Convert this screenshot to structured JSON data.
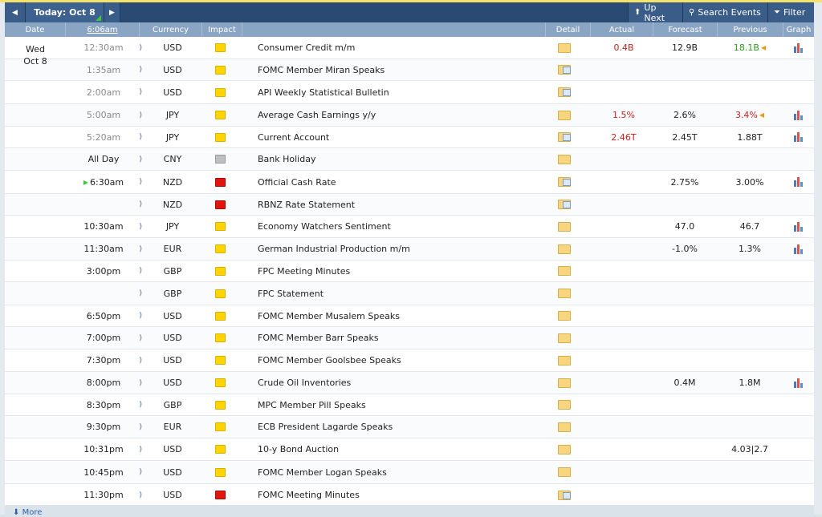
{
  "toolbar": {
    "today_label": "Today: Oct 8",
    "up_next_label": "Up Next",
    "search_label": "Search Events",
    "filter_label": "Filter"
  },
  "columns": {
    "date": "Date",
    "time": "6:06am",
    "currency": "Currency",
    "impact": "Impact",
    "detail": "Detail",
    "actual": "Actual",
    "forecast": "Forecast",
    "previous": "Previous",
    "graph": "Graph"
  },
  "date_cell": {
    "day": "Wed",
    "date": "Oct 8"
  },
  "rows": [
    {
      "time": "12:30am",
      "currency": "USD",
      "impact": "yellow",
      "event": "Consumer Credit m/m",
      "actual": "0.4B",
      "forecast": "12.9B",
      "previous": "18.1B",
      "graph": true
    },
    {
      "time": "1:35am",
      "currency": "USD",
      "impact": "yellow",
      "event": "FOMC Member Miran Speaks",
      "actual": "",
      "forecast": "",
      "previous": "",
      "graph": false
    },
    {
      "time": "2:00am",
      "currency": "USD",
      "impact": "yellow",
      "event": "API Weekly Statistical Bulletin",
      "actual": "",
      "forecast": "",
      "previous": "",
      "graph": false
    },
    {
      "time": "5:00am",
      "currency": "JPY",
      "impact": "yellow",
      "event": "Average Cash Earnings y/y",
      "actual": "1.5%",
      "forecast": "2.6%",
      "previous": "3.4%",
      "graph": true
    },
    {
      "time": "5:20am",
      "currency": "JPY",
      "impact": "yellow",
      "event": "Current Account",
      "actual": "2.46T",
      "forecast": "2.45T",
      "previous": "1.88T",
      "graph": true
    },
    {
      "time": "All Day",
      "currency": "CNY",
      "impact": "gray",
      "event": "Bank Holiday",
      "actual": "",
      "forecast": "",
      "previous": "",
      "graph": false
    },
    {
      "time": "6:30am",
      "currency": "NZD",
      "impact": "red",
      "event": "Official Cash Rate",
      "actual": "",
      "forecast": "2.75%",
      "previous": "3.00%",
      "graph": true
    },
    {
      "time": "",
      "currency": "NZD",
      "impact": "red",
      "event": "RBNZ Rate Statement",
      "actual": "",
      "forecast": "",
      "previous": "",
      "graph": false
    },
    {
      "time": "10:30am",
      "currency": "JPY",
      "impact": "yellow",
      "event": "Economy Watchers Sentiment",
      "actual": "",
      "forecast": "47.0",
      "previous": "46.7",
      "graph": true
    },
    {
      "time": "11:30am",
      "currency": "EUR",
      "impact": "yellow",
      "event": "German Industrial Production m/m",
      "actual": "",
      "forecast": "-1.0%",
      "previous": "1.3%",
      "graph": true
    },
    {
      "time": "3:00pm",
      "currency": "GBP",
      "impact": "yellow",
      "event": "FPC Meeting Minutes",
      "actual": "",
      "forecast": "",
      "previous": "",
      "graph": false
    },
    {
      "time": "",
      "currency": "GBP",
      "impact": "yellow",
      "event": "FPC Statement",
      "actual": "",
      "forecast": "",
      "previous": "",
      "graph": false
    },
    {
      "time": "6:50pm",
      "currency": "USD",
      "impact": "yellow",
      "event": "FOMC Member Musalem Speaks",
      "actual": "",
      "forecast": "",
      "previous": "",
      "graph": false
    },
    {
      "time": "7:00pm",
      "currency": "USD",
      "impact": "yellow",
      "event": "FOMC Member Barr Speaks",
      "actual": "",
      "forecast": "",
      "previous": "",
      "graph": false
    },
    {
      "time": "7:30pm",
      "currency": "USD",
      "impact": "yellow",
      "event": "FOMC Member Goolsbee Speaks",
      "actual": "",
      "forecast": "",
      "previous": "",
      "graph": false
    },
    {
      "time": "8:00pm",
      "currency": "USD",
      "impact": "yellow",
      "event": "Crude Oil Inventories",
      "actual": "",
      "forecast": "0.4M",
      "previous": "1.8M",
      "graph": true
    },
    {
      "time": "8:30pm",
      "currency": "GBP",
      "impact": "yellow",
      "event": "MPC Member Pill Speaks",
      "actual": "",
      "forecast": "",
      "previous": "",
      "graph": false
    },
    {
      "time": "9:30pm",
      "currency": "EUR",
      "impact": "yellow",
      "event": "ECB President Lagarde Speaks",
      "actual": "",
      "forecast": "",
      "previous": "",
      "graph": false
    },
    {
      "time": "10:31pm",
      "currency": "USD",
      "impact": "yellow",
      "event": "10-y Bond Auction",
      "actual": "",
      "forecast": "",
      "previous": "4.03|2.7",
      "graph": false
    },
    {
      "time": "10:45pm",
      "currency": "USD",
      "impact": "yellow",
      "event": "FOMC Member Logan Speaks",
      "actual": "",
      "forecast": "",
      "previous": "",
      "graph": false
    },
    {
      "time": "11:30pm",
      "currency": "USD",
      "impact": "red",
      "event": "FOMC Meeting Minutes",
      "actual": "",
      "forecast": "",
      "previous": "",
      "graph": false
    }
  ],
  "footer": {
    "more_label": "More"
  },
  "colors": {
    "header_bg": "#2b4a73",
    "col_header_bg": "#8aa4c3",
    "negative": "#c7211c",
    "positive": "#2f9c1e",
    "high_impact": "#e0160f",
    "medium_impact": "#ffd500"
  }
}
